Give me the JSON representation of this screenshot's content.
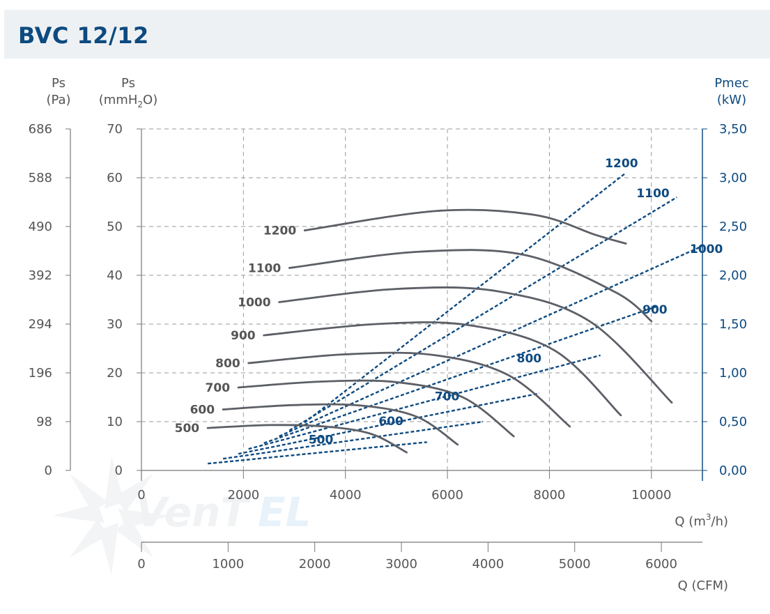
{
  "title": "BVC 12/12",
  "axes": {
    "left_pa_title": "Ps",
    "left_pa_unit": "(Pa)",
    "left_mm_title": "Ps",
    "left_mm_unit_pre": "(mmH",
    "left_mm_unit_sub": "2",
    "left_mm_unit_post": "O)",
    "right_title": "Pmec",
    "right_unit": "(kW)",
    "x_m3h_label_pre": "Q (m",
    "x_m3h_label_sup": "3",
    "x_m3h_label_post": "/h)",
    "x_cfm_label": "Q (CFM)",
    "pa_ticks": [
      "686",
      "588",
      "490",
      "392",
      "294",
      "196",
      "98",
      "0"
    ],
    "mm_ticks": [
      "70",
      "60",
      "50",
      "40",
      "30",
      "20",
      "10",
      "0"
    ],
    "kw_ticks": [
      "3,50",
      "3,00",
      "2,50",
      "2,00",
      "1,50",
      "1,00",
      "0,50",
      "0,00"
    ],
    "x_ticks": [
      "0",
      "2000",
      "4000",
      "6000",
      "8000",
      "10000"
    ],
    "cfm_ticks": [
      "0",
      "1000",
      "2000",
      "3000",
      "4000",
      "5000",
      "6000"
    ]
  },
  "colors": {
    "title": "#0d4a80",
    "pressure_curve": "#5c5f66",
    "power_curve": "#0d4a80",
    "grid": "#9a9a9a",
    "title_bar": "#eef1f4"
  },
  "chart_data": {
    "type": "line",
    "x_axis": {
      "label": "Q (m3/h)",
      "range": [
        0,
        11000
      ]
    },
    "y_axis_left": {
      "label": "Ps (mmH2O)",
      "range": [
        0,
        70
      ]
    },
    "y_axis_right": {
      "label": "Pmec (kW)",
      "range": [
        0,
        3.5
      ]
    },
    "grid": true,
    "pressure_series": [
      {
        "name": "500",
        "points": [
          [
            1300,
            8.7
          ],
          [
            2500,
            9.3
          ],
          [
            3600,
            9.0
          ],
          [
            4500,
            7.5
          ],
          [
            5200,
            3.7
          ]
        ]
      },
      {
        "name": "600",
        "points": [
          [
            1600,
            12.5
          ],
          [
            3000,
            13.4
          ],
          [
            4300,
            13.3
          ],
          [
            5400,
            11.0
          ],
          [
            6200,
            5.3
          ]
        ]
      },
      {
        "name": "700",
        "points": [
          [
            1900,
            17.0
          ],
          [
            3500,
            18.2
          ],
          [
            5000,
            18.1
          ],
          [
            6300,
            15.0
          ],
          [
            7300,
            7.0
          ]
        ]
      },
      {
        "name": "800",
        "points": [
          [
            2100,
            22.0
          ],
          [
            4000,
            23.8
          ],
          [
            5700,
            23.7
          ],
          [
            7200,
            19.5
          ],
          [
            8400,
            9.0
          ]
        ]
      },
      {
        "name": "900",
        "points": [
          [
            2400,
            27.7
          ],
          [
            4600,
            30.0
          ],
          [
            6400,
            29.8
          ],
          [
            8100,
            24.6
          ],
          [
            9400,
            11.3
          ]
        ]
      },
      {
        "name": "1000",
        "points": [
          [
            2700,
            34.5
          ],
          [
            5000,
            37.2
          ],
          [
            7000,
            36.7
          ],
          [
            8800,
            30.5
          ],
          [
            10400,
            13.9
          ]
        ]
      },
      {
        "name": "1100",
        "points": [
          [
            2900,
            41.5
          ],
          [
            5400,
            44.8
          ],
          [
            7500,
            44.2
          ],
          [
            9300,
            36.5
          ],
          [
            10000,
            30.6
          ]
        ]
      },
      {
        "name": "1200",
        "points": [
          [
            3200,
            49.2
          ],
          [
            5800,
            53.2
          ],
          [
            7700,
            52.4
          ],
          [
            8900,
            48.3
          ],
          [
            9500,
            46.5
          ]
        ]
      }
    ],
    "power_series": [
      {
        "name": "500",
        "points": [
          [
            1300,
            0.07
          ],
          [
            5600,
            0.29
          ]
        ]
      },
      {
        "name": "600",
        "points": [
          [
            1600,
            0.12
          ],
          [
            6700,
            0.5
          ]
        ]
      },
      {
        "name": "700",
        "points": [
          [
            1900,
            0.17
          ],
          [
            7800,
            0.79
          ]
        ]
      },
      {
        "name": "800",
        "points": [
          [
            2100,
            0.22
          ],
          [
            9000,
            1.18
          ]
        ]
      },
      {
        "name": "900",
        "points": [
          [
            2400,
            0.28
          ],
          [
            10100,
            1.68
          ]
        ]
      },
      {
        "name": "1000",
        "points": [
          [
            2700,
            0.35
          ],
          [
            11000,
            2.3
          ]
        ]
      },
      {
        "name": "1100",
        "points": [
          [
            2900,
            0.41
          ],
          [
            10500,
            2.8
          ]
        ]
      },
      {
        "name": "1200",
        "points": [
          [
            3200,
            0.49
          ],
          [
            9500,
            3.05
          ]
        ]
      }
    ],
    "pressure_labels": [
      "1200",
      "1100",
      "1000",
      "900",
      "800",
      "700",
      "600",
      "500"
    ],
    "power_labels": [
      "1200",
      "1100",
      "1000",
      "900",
      "800",
      "700",
      "600",
      "500"
    ],
    "secondary_x_axis": {
      "label": "Q (CFM)",
      "range": [
        0,
        6474
      ]
    }
  }
}
